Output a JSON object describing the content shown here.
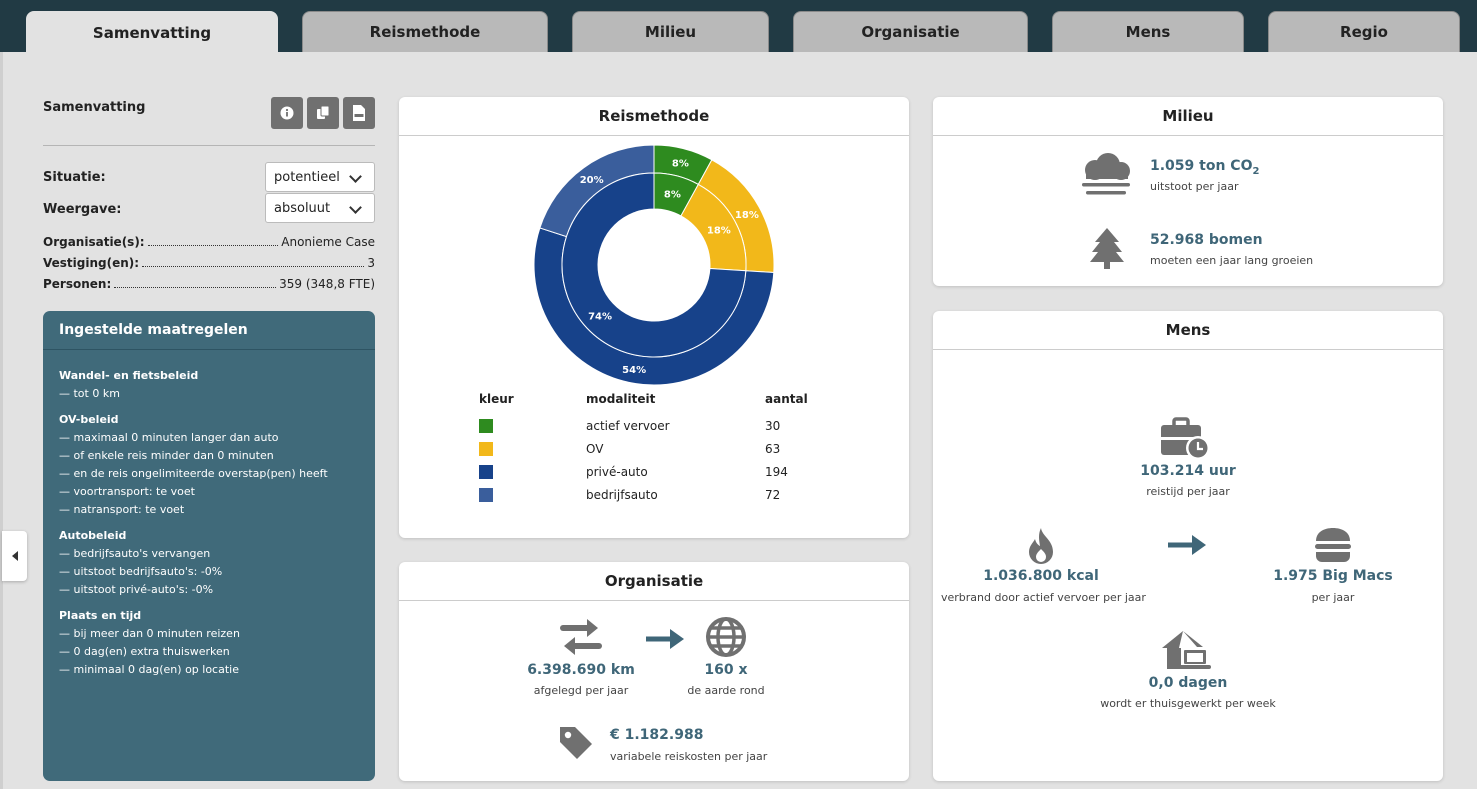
{
  "tabs": [
    {
      "label": "Samenvatting"
    },
    {
      "label": "Reismethode"
    },
    {
      "label": "Milieu"
    },
    {
      "label": "Organisatie"
    },
    {
      "label": "Mens"
    },
    {
      "label": "Regio"
    }
  ],
  "summary": {
    "title": "Samenvatting",
    "situatie_label": "Situatie:",
    "situatie_value": "potentieel",
    "weergave_label": "Weergave:",
    "weergave_value": "absoluut",
    "info": [
      {
        "label": "Organisatie(s):",
        "value": "Anonieme Case"
      },
      {
        "label": "Vestiging(en):",
        "value": "3"
      },
      {
        "label": "Personen:",
        "value": "359 (348,8 FTE)"
      }
    ]
  },
  "measures": {
    "title": "Ingestelde maatregelen",
    "sections": [
      {
        "title": "Wandel- en fietsbeleid",
        "items": [
          "— tot 0 km"
        ]
      },
      {
        "title": "OV-beleid",
        "items": [
          "— maximaal 0 minuten langer dan auto",
          "— of enkele reis minder dan 0 minuten",
          "— en de reis ongelimiteerde overstap(pen) heeft",
          "— voortransport: te voet",
          "— natransport: te voet"
        ]
      },
      {
        "title": "Autobeleid",
        "items": [
          "— bedrijfsauto's vervangen",
          "— uitstoot bedrijfsauto's: -0%",
          "— uitstoot privé-auto's: -0%"
        ]
      },
      {
        "title": "Plaats en tijd",
        "items": [
          "— bij meer dan 0 minuten reizen",
          "— 0 dag(en) extra thuiswerken",
          "— minimaal 0 dag(en) op locatie"
        ]
      }
    ]
  },
  "reismethode": {
    "title": "Reismethode",
    "legend_headers": {
      "kleur": "kleur",
      "modaliteit": "modaliteit",
      "aantal": "aantal"
    },
    "rows": [
      {
        "name": "actief vervoer",
        "count": "30",
        "color": "#2e8b1f"
      },
      {
        "name": "OV",
        "count": "63",
        "color": "#f2b81a"
      },
      {
        "name": "privé-auto",
        "count": "194",
        "color": "#17428a"
      },
      {
        "name": "bedrijfsauto",
        "count": "72",
        "color": "#3a5e9c"
      }
    ]
  },
  "chart_data": {
    "type": "pie",
    "variant": "nested-donut",
    "outer_ring": {
      "categories": [
        "actief vervoer",
        "OV",
        "privé-auto",
        "bedrijfsauto"
      ],
      "values": [
        8,
        18,
        54,
        20
      ],
      "labels": [
        "8%",
        "18%",
        "54%",
        "20%"
      ]
    },
    "inner_ring": {
      "categories": [
        "actief vervoer",
        "OV",
        "privé-auto"
      ],
      "values": [
        8,
        18,
        74
      ],
      "labels": [
        "8%",
        "18%",
        "74%"
      ]
    },
    "colors": [
      "#2e8b1f",
      "#f2b81a",
      "#17428a",
      "#3a5e9c"
    ]
  },
  "milieu": {
    "title": "Milieu",
    "co2_value": "1.059 ton CO",
    "co2_sub": "2",
    "co2_label": "uitstoot per jaar",
    "trees_value": "52.968 bomen",
    "trees_label": "moeten een jaar lang groeien"
  },
  "organisatie": {
    "title": "Organisatie",
    "km_value": "6.398.690 km",
    "km_label": "afgelegd per jaar",
    "earth_value": "160 x",
    "earth_label": "de aarde rond",
    "cost_value": "€ 1.182.988",
    "cost_label": "variabele reiskosten per jaar"
  },
  "mens": {
    "title": "Mens",
    "time_value": "103.214 uur",
    "time_label": "reistijd per jaar",
    "kcal_value": "1.036.800 kcal",
    "kcal_label": "verbrand door actief vervoer per jaar",
    "bigmac_value": "1.975 Big Macs",
    "bigmac_label": "per jaar",
    "home_value": "0,0 dagen",
    "home_label": "wordt er thuisgewerkt per week"
  }
}
